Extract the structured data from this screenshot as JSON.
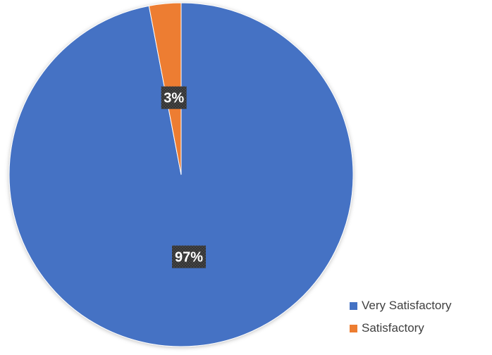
{
  "chart_data": {
    "type": "pie",
    "title": "",
    "categories": [
      "Very Satisfactory",
      "Satisfactory"
    ],
    "values": [
      97,
      3
    ],
    "data_labels": [
      "97%",
      "3%"
    ],
    "colors": [
      "#4472c4",
      "#ed7d31"
    ],
    "legend_position": "bottom-right",
    "label_background": "#3a3a3a",
    "label_color": "#ffffff"
  },
  "legend": {
    "items": [
      {
        "label": "Very Satisfactory",
        "color": "#4472c4"
      },
      {
        "label": "Satisfactory",
        "color": "#ed7d31"
      }
    ]
  }
}
